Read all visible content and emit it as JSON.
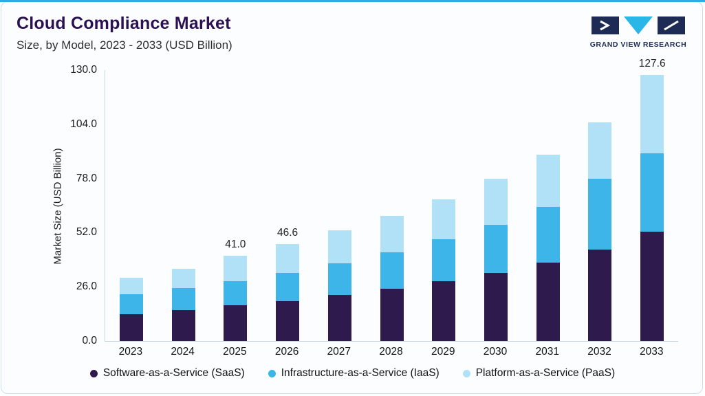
{
  "theme": {
    "accent_line_color": "#29b0e0",
    "card_background": "#fbfdff",
    "card_border": "#cddde8",
    "title_color": "#2c1152",
    "logo_navy": "#1e2b55",
    "logo_cyan": "#2ab7e8"
  },
  "header": {
    "title": "Cloud Compliance Market",
    "subtitle": "Size, by Model, 2023 - 2033 (USD Billion)",
    "logo_text": "GRAND VIEW RESEARCH"
  },
  "chart_data": {
    "type": "bar",
    "stacked": true,
    "title": "Cloud Compliance Market Size, by Model, 2023 - 2033 (USD Billion)",
    "xlabel": "",
    "ylabel": "Market Size (USD Billion)",
    "ylim": [
      0,
      130
    ],
    "yticks": [
      0,
      26,
      52,
      78,
      104,
      130
    ],
    "grid": false,
    "legend_position": "bottom",
    "categories": [
      2023,
      2024,
      2025,
      2026,
      2027,
      2028,
      2029,
      2030,
      2031,
      2032,
      2033
    ],
    "series": [
      {
        "id": "saas",
        "name": "Software-as-a-Service (SaaS)",
        "color": "#2f1a4d",
        "values": [
          13.0,
          14.8,
          17.0,
          19.3,
          22.0,
          25.0,
          28.6,
          32.7,
          37.5,
          44.0,
          52.5
        ]
      },
      {
        "id": "iaas",
        "name": "Infrastructure-as-a-Service (IaaS)",
        "color": "#3db5e8",
        "values": [
          9.3,
          10.5,
          11.8,
          13.5,
          15.4,
          17.6,
          20.2,
          23.2,
          26.7,
          34.0,
          37.5
        ]
      },
      {
        "id": "paas",
        "name": "Platform-as-a-Service (PaaS)",
        "color": "#b0e1f7",
        "values": [
          8.0,
          9.2,
          12.2,
          13.8,
          15.6,
          17.4,
          19.2,
          22.1,
          25.3,
          27.0,
          37.6
        ]
      }
    ],
    "bar_labels": {
      "2025": "41.0",
      "2026": "46.6",
      "2033": "127.6"
    }
  }
}
